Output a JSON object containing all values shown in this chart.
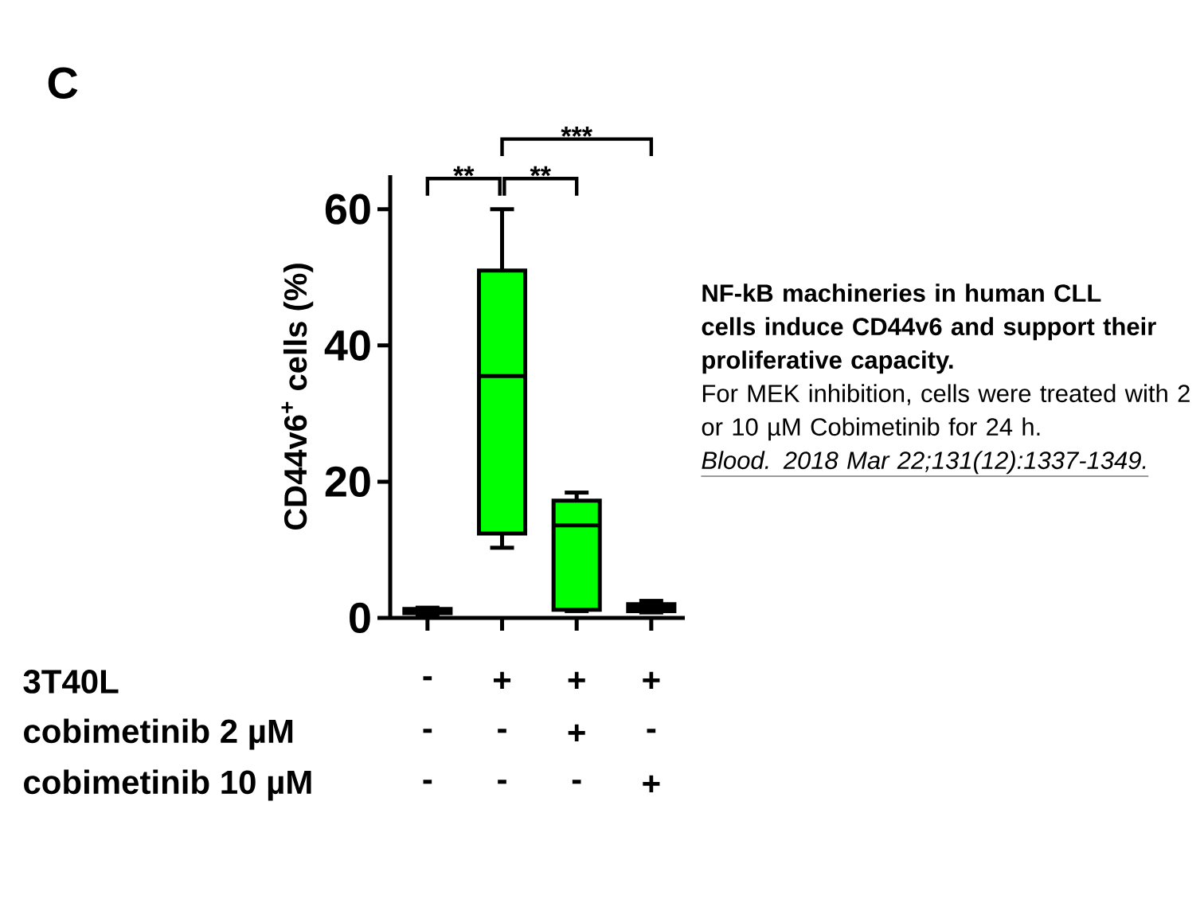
{
  "chart_data": {
    "type": "box",
    "title": "C",
    "ylabel": "CD44v6$^{+}$ cells (%)",
    "categories": [
      null,
      null,
      null,
      null
    ],
    "boxes": [
      {
        "low": 0.5,
        "q1": 0.7,
        "median": 1,
        "q3": 1.3,
        "high": 1.5
      },
      {
        "low": 10.3,
        "q1": 12.4,
        "median": 35.5,
        "q3": 51,
        "high": 60
      },
      {
        "low": 1,
        "q1": 1.2,
        "median": 13.6,
        "q3": 17.2,
        "high": 18.4
      },
      {
        "low": 0.8,
        "q1": 1,
        "median": 1.5,
        "q3": 2,
        "high": 2.5
      }
    ],
    "colors": [
      "#000000",
      "#00ff00",
      "#00ff00",
      "#000000"
    ],
    "ylim": [
      0,
      65
    ],
    "yticks": [
      0,
      20,
      40,
      60
    ],
    "tick_labels": "y",
    "annotations": [
      "**",
      "**",
      "***",
      "3T40L",
      "-",
      "+",
      "+",
      "+",
      "cobimetinib 2 µM",
      "-",
      "-",
      "+",
      "-",
      "cobimetinib 10 µM",
      "-",
      "-",
      "-",
      "+",
      "NF-kB machineries in human CLL cells induce CD44v6 and support their proliferative capacity.",
      "For MEK inhibition, cells were treated with 2 or 10 µM Cobimetinib for 24 h.",
      "Blood. 2018 Mar 22;131(12):1337-1349."
    ]
  }
}
